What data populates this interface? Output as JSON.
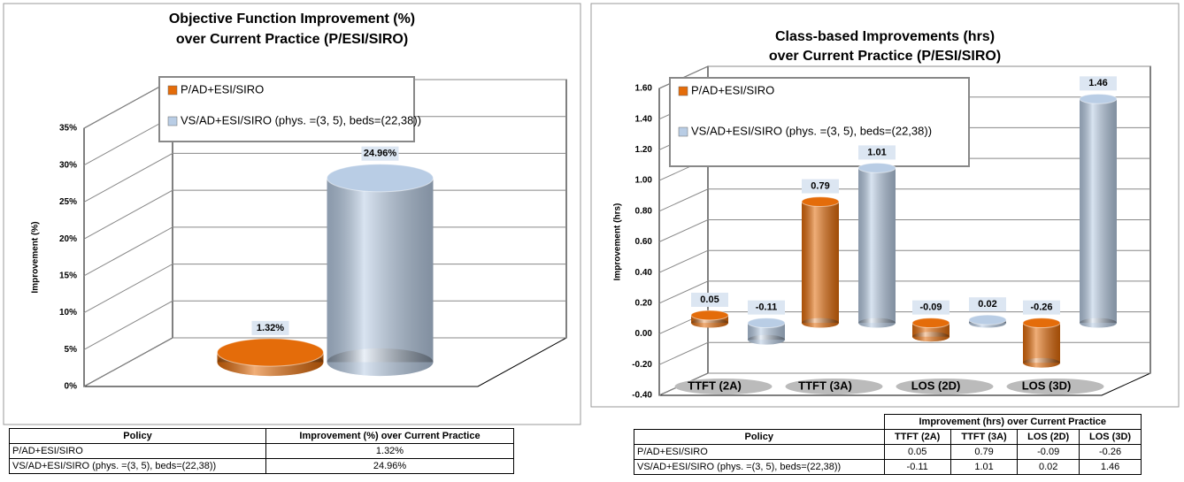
{
  "chart_data": [
    {
      "type": "bar",
      "title": [
        "Objective Function  Improvement (%)",
        "over Current Practice (P/ESI/SIRO)"
      ],
      "y_label": "Improvement  (%)",
      "categories": [
        null
      ],
      "series": [
        {
          "name": "P/AD+ESI/SIRO",
          "color": "#e46c0a",
          "values": [
            1.32
          ],
          "value_labels": [
            "1.32%"
          ]
        },
        {
          "name": "VS/AD+ESI/SIRO (phys. =(3, 5), beds=(22,38))",
          "color": "#b9cde5",
          "values": [
            24.96
          ],
          "value_labels": [
            "24.96%"
          ]
        }
      ],
      "ylim": [
        0,
        35
      ],
      "yticks": [
        {
          "value": 0,
          "label": "0%"
        },
        {
          "value": 5,
          "label": "5%"
        },
        {
          "value": 10,
          "label": "10%"
        },
        {
          "value": 15,
          "label": "15%"
        },
        {
          "value": 20,
          "label": "20%"
        },
        {
          "value": 25,
          "label": "25%"
        },
        {
          "value": 30,
          "label": "30%"
        },
        {
          "value": 35,
          "label": "35%"
        }
      ],
      "grid": true
    },
    {
      "type": "bar",
      "title": [
        "Class-based Improvements (hrs)",
        "over Current Practice (P/ESI/SIRO)"
      ],
      "y_label": "Improvement  (hrs)",
      "categories": [
        "TTFT (2A)",
        "TTFT (3A)",
        "LOS (2D)",
        "LOS (3D)"
      ],
      "series": [
        {
          "name": "P/AD+ESI/SIRO",
          "color": "#e46c0a",
          "values": [
            0.05,
            0.79,
            -0.09,
            -0.26
          ]
        },
        {
          "name": "VS/AD+ESI/SIRO (phys. =(3, 5), beds=(22,38))",
          "color": "#b9cde5",
          "values": [
            -0.11,
            1.01,
            0.02,
            1.46
          ]
        }
      ],
      "ylim": [
        -0.4,
        1.6
      ],
      "yticks": [
        {
          "value": -0.4,
          "label": "-0.40"
        },
        {
          "value": -0.2,
          "label": "-0.20"
        },
        {
          "value": 0,
          "label": "0.00"
        },
        {
          "value": 0.2,
          "label": "0.20"
        },
        {
          "value": 0.4,
          "label": "0.40"
        },
        {
          "value": 0.6,
          "label": "0.60"
        },
        {
          "value": 0.8,
          "label": "0.80"
        },
        {
          "value": 1,
          "label": "1.00"
        },
        {
          "value": 1.2,
          "label": "1.20"
        },
        {
          "value": 1.4,
          "label": "1.40"
        },
        {
          "value": 1.6,
          "label": "1.60"
        }
      ],
      "grid": true
    }
  ],
  "tables": [
    {
      "header": [
        "Policy",
        "Improvement (%)  over Current Practice"
      ],
      "rows": [
        [
          "P/AD+ESI/SIRO",
          "1.32%"
        ],
        [
          "VS/AD+ESI/SIRO (phys. =(3, 5), beds=(22,38))",
          "24.96%"
        ]
      ]
    },
    {
      "group_header": "Improvement (hrs)  over Current Practice",
      "header": [
        "Policy",
        "TTFT (2A)",
        "TTFT (3A)",
        "LOS (2D)",
        "LOS (3D)"
      ],
      "rows": [
        [
          "P/AD+ESI/SIRO",
          "0.05",
          "0.79",
          "-0.09",
          "-0.26"
        ],
        [
          "VS/AD+ESI/SIRO (phys. =(3, 5), beds=(22,38))",
          "-0.11",
          "1.01",
          "0.02",
          "1.46"
        ]
      ]
    }
  ]
}
